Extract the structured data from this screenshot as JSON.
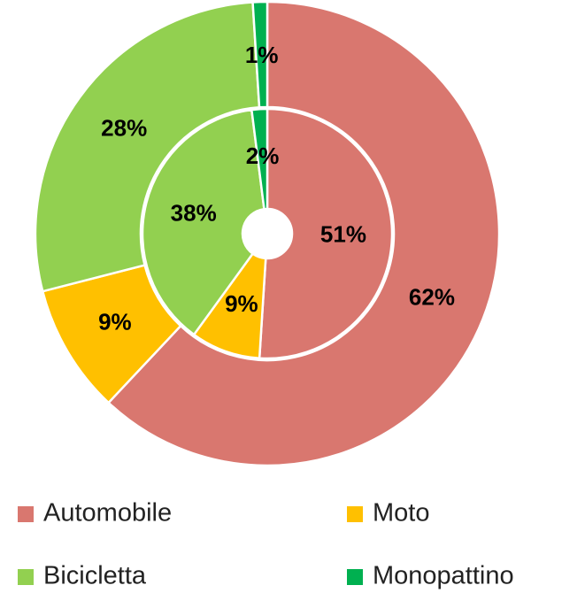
{
  "chart_data": {
    "type": "donut",
    "categories": [
      "Automobile",
      "Moto",
      "Bicicletta",
      "Monopattino"
    ],
    "colors": [
      "#d9776f",
      "#ffc000",
      "#92d050",
      "#00b050"
    ],
    "series": [
      {
        "values": [
          62,
          9,
          28,
          1
        ],
        "value_labels": [
          "62%",
          "9%",
          "28%",
          "1%"
        ]
      },
      {
        "values": [
          51,
          9,
          38,
          2
        ],
        "value_labels": [
          "51%",
          "9%",
          "38%",
          "2%"
        ]
      }
    ]
  }
}
